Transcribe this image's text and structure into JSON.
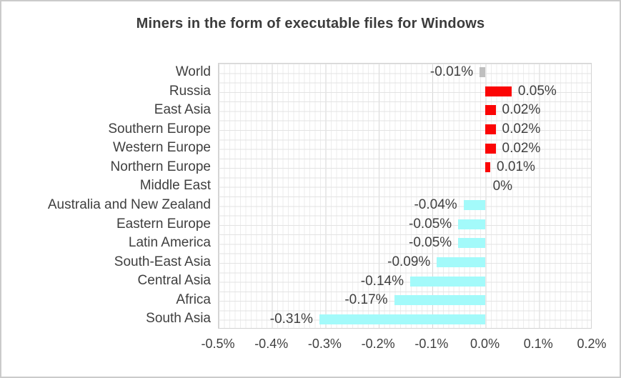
{
  "title": "Miners in the form of executable files for Windows",
  "chart_data": {
    "type": "bar",
    "orientation": "horizontal",
    "title": "Miners in the form of executable files for Windows",
    "categories": [
      "World",
      "Russia",
      "East Asia",
      "Southern Europe",
      "Western Europe",
      "Northern Europe",
      "Middle East",
      "Australia and New Zealand",
      "Eastern Europe",
      "Latin America",
      "South-East Asia",
      "Central Asia",
      "Africa",
      "South Asia"
    ],
    "values": [
      -0.01,
      0.05,
      0.02,
      0.02,
      0.02,
      0.01,
      0,
      -0.04,
      -0.05,
      -0.05,
      -0.09,
      -0.14,
      -0.17,
      -0.31
    ],
    "value_labels": [
      "-0.01%",
      "0.05%",
      "0.02%",
      "0.02%",
      "0.02%",
      "0.01%",
      "0%",
      "-0.04%",
      "-0.05%",
      "-0.05%",
      "-0.09%",
      "-0.14%",
      "-0.17%",
      "-0.31%"
    ],
    "bar_colors": [
      "#bfbfbf",
      "#fb0505",
      "#fb0505",
      "#fb0505",
      "#fb0505",
      "#fb0505",
      "none",
      "#a3fafa",
      "#a3fafa",
      "#a3fafa",
      "#a3fafa",
      "#a3fafa",
      "#a3fafa",
      "#a3fafa"
    ],
    "x_tick_labels": [
      "-0.5%",
      "-0.4%",
      "-0.3%",
      "-0.2%",
      "-0.1%",
      "0.0%",
      "0.1%",
      "0.2%"
    ],
    "xlim": [
      -0.5,
      0.2
    ],
    "xlabel": "",
    "ylabel": "",
    "grid": true,
    "legend": "none",
    "colors": {
      "positive_bar": "#fb0505",
      "negative_bar": "#a3fafa",
      "neutral_bar": "#bfbfbf",
      "grid_minor": "#ededed",
      "grid_major": "#d6d6d6",
      "text": "#3f3f3f"
    }
  }
}
